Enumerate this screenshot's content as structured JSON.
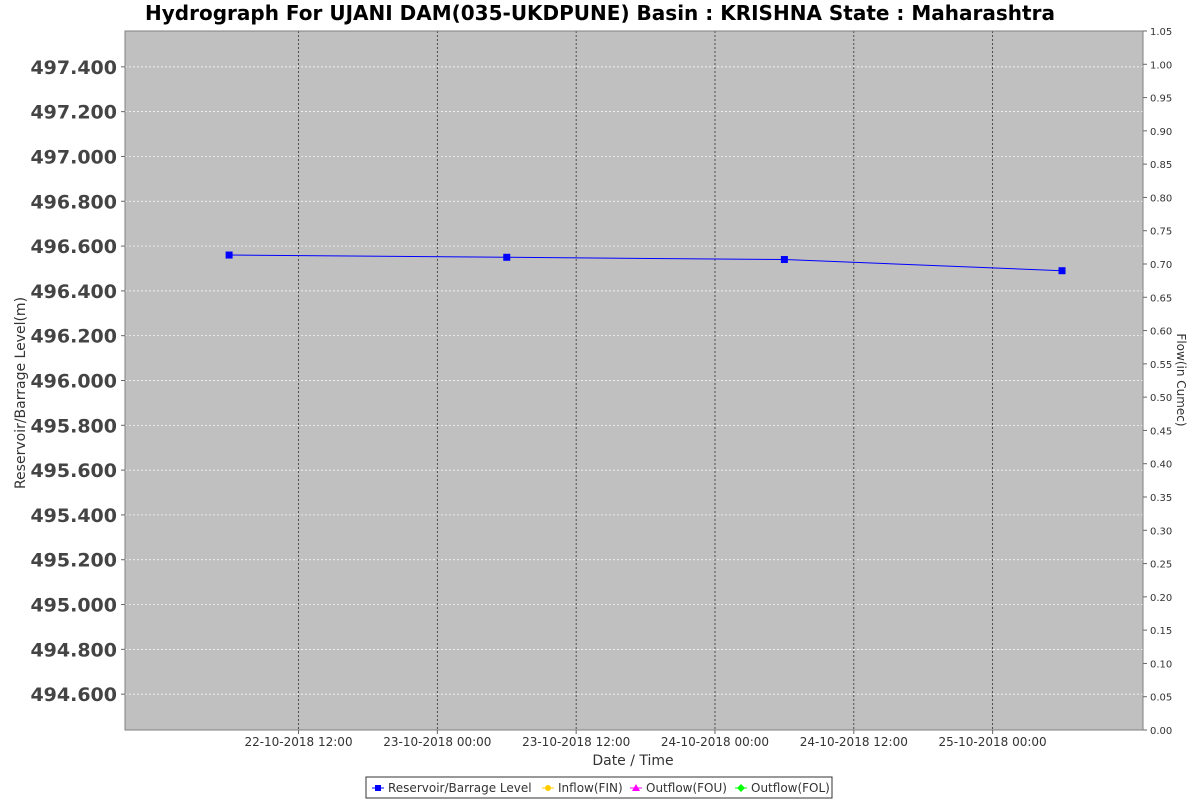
{
  "chart_data": {
    "type": "line",
    "title": "Hydrograph For UJANI DAM(035-UKDPUNE) Basin : KRISHNA State : Maharashtra",
    "xlabel": "Date / Time",
    "ylabel_left": "Reservoir/Barrage Level(m)",
    "ylabel_right": "Flow(in Cumec)",
    "x_range": [
      "2018-10-21T21:00",
      "2018-10-25T13:00"
    ],
    "x_ticks": [
      "22-10-2018 12:00",
      "23-10-2018 00:00",
      "23-10-2018 12:00",
      "24-10-2018 00:00",
      "24-10-2018 12:00",
      "25-10-2018 00:00"
    ],
    "x_tick_dates": [
      "2018-10-22T12:00",
      "2018-10-23T00:00",
      "2018-10-23T12:00",
      "2018-10-24T00:00",
      "2018-10-24T12:00",
      "2018-10-25T00:00"
    ],
    "ylim_left": [
      494.44,
      497.56
    ],
    "yticks_left": [
      "494.600",
      "494.800",
      "495.000",
      "495.200",
      "495.400",
      "495.600",
      "495.800",
      "496.000",
      "496.200",
      "496.400",
      "496.600",
      "496.800",
      "497.000",
      "497.200",
      "497.400"
    ],
    "ylim_right": [
      0.0,
      1.05
    ],
    "yticks_right": [
      "0.00",
      "0.05",
      "0.10",
      "0.15",
      "0.20",
      "0.25",
      "0.30",
      "0.35",
      "0.40",
      "0.45",
      "0.50",
      "0.55",
      "0.60",
      "0.65",
      "0.70",
      "0.75",
      "0.80",
      "0.85",
      "0.90",
      "0.95",
      "1.00",
      "1.05"
    ],
    "grid": true,
    "plot_background": "#c0c0c0",
    "series": [
      {
        "name": "Reservoir/Barrage Level",
        "color": "#0000ff",
        "marker": "square",
        "axis": "left",
        "x": [
          "2018-10-22T06:00",
          "2018-10-23T06:00",
          "2018-10-24T06:00",
          "2018-10-25T06:00"
        ],
        "y": [
          496.56,
          496.55,
          496.54,
          496.49
        ]
      }
    ],
    "legend": {
      "placement": "bottom-center",
      "items": [
        {
          "label": "Reservoir/Barrage Level",
          "color": "#0000ff",
          "marker": "square"
        },
        {
          "label": "Inflow(FIN)",
          "color": "#ffcc00",
          "marker": "circle"
        },
        {
          "label": "Outflow(FOU)",
          "color": "#ff00ff",
          "marker": "triangle"
        },
        {
          "label": "Outflow(FOL)",
          "color": "#00ff00",
          "marker": "diamond"
        }
      ]
    }
  }
}
